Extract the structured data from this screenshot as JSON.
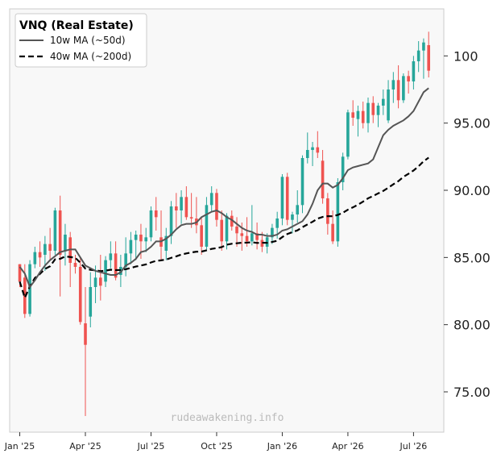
{
  "chart_data": {
    "type": "candlestick",
    "title": "VNQ (Real Estate)",
    "xlabel": "",
    "ylabel": "",
    "ylim": [
      72,
      103.5
    ],
    "y_ticks": [
      75,
      80,
      85,
      90,
      95,
      100
    ],
    "y_tick_labels": [
      "75.00",
      "80.00",
      "85.00",
      "90.00",
      "95.00",
      "100"
    ],
    "x_range": [
      -2,
      84
    ],
    "x_ticks": [
      0,
      13,
      26,
      39,
      52,
      65,
      78
    ],
    "x_tick_labels": [
      "Jan '25",
      "Apr '25",
      "Jul '25",
      "Oct '25",
      "Jan '26",
      "Apr '26",
      "Jul '26"
    ],
    "legend": {
      "position": "top-left",
      "entries": [
        {
          "label": "10w MA (~50d)",
          "color": "#555555",
          "style": "solid"
        },
        {
          "label": "40w MA (~200d)",
          "color": "#000000",
          "style": "dashed"
        }
      ]
    },
    "grid": false,
    "watermark": "rudeawakening.info",
    "colors": {
      "up": "#26a69a",
      "down": "#ef5350",
      "ma10": "#555555",
      "ma40": "#000000",
      "background": "#f8f8f8"
    },
    "ohlc": [
      [
        84.5,
        84.5,
        82.8,
        83.2
      ],
      [
        83.5,
        84.5,
        80.5,
        80.8
      ],
      [
        80.8,
        84.8,
        80.6,
        84.5
      ],
      [
        84.5,
        85.8,
        84.2,
        85.4
      ],
      [
        85.4,
        86.2,
        84.3,
        85.0
      ],
      [
        85.2,
        86.6,
        84.0,
        86.0
      ],
      [
        86.0,
        87.2,
        84.8,
        85.5
      ],
      [
        85.5,
        88.7,
        85.2,
        88.5
      ],
      [
        88.5,
        89.6,
        82.1,
        85.2
      ],
      [
        85.5,
        87.5,
        84.4,
        86.7
      ],
      [
        86.5,
        86.9,
        82.8,
        84.6
      ],
      [
        84.6,
        85.2,
        83.8,
        84.3
      ],
      [
        84.3,
        85.0,
        80.0,
        80.2
      ],
      [
        80.1,
        82.8,
        73.2,
        78.5
      ],
      [
        80.6,
        83.9,
        79.8,
        82.8
      ],
      [
        82.8,
        84.4,
        81.6,
        83.5
      ],
      [
        83.5,
        85.2,
        81.8,
        82.9
      ],
      [
        83.2,
        85.1,
        82.8,
        84.8
      ],
      [
        84.8,
        86.2,
        84.2,
        85.3
      ],
      [
        85.3,
        86.2,
        83.3,
        83.5
      ],
      [
        83.7,
        85.2,
        82.8,
        84.3
      ],
      [
        84.3,
        86.5,
        83.6,
        85.3
      ],
      [
        85.3,
        86.9,
        84.5,
        86.3
      ],
      [
        86.3,
        87.0,
        84.8,
        86.7
      ],
      [
        86.7,
        87.5,
        84.9,
        86.2
      ],
      [
        86.2,
        87.2,
        85.4,
        86.5
      ],
      [
        86.5,
        88.8,
        86.2,
        88.5
      ],
      [
        88.5,
        89.5,
        87.0,
        88.0
      ],
      [
        86.5,
        88.5,
        84.8,
        85.8
      ],
      [
        85.5,
        87.2,
        84.8,
        86.6
      ],
      [
        86.6,
        89.2,
        86.0,
        88.8
      ],
      [
        88.8,
        89.8,
        87.2,
        88.5
      ],
      [
        88.5,
        90.0,
        87.5,
        89.5
      ],
      [
        89.5,
        90.3,
        87.8,
        88.0
      ],
      [
        88.0,
        89.8,
        87.2,
        87.9
      ],
      [
        87.9,
        89.5,
        86.8,
        87.4
      ],
      [
        87.4,
        88.0,
        85.2,
        85.8
      ],
      [
        85.8,
        89.5,
        85.6,
        88.9
      ],
      [
        88.9,
        90.3,
        88.4,
        89.8
      ],
      [
        89.8,
        90.1,
        87.3,
        87.8
      ],
      [
        87.8,
        88.5,
        85.5,
        86.2
      ],
      [
        86.2,
        88.3,
        85.6,
        88.1
      ],
      [
        88.1,
        88.5,
        87.0,
        87.3
      ],
      [
        87.3,
        88.0,
        85.8,
        86.8
      ],
      [
        86.8,
        87.6,
        85.5,
        86.6
      ],
      [
        86.6,
        88.0,
        85.8,
        86.2
      ],
      [
        86.2,
        88.9,
        85.9,
        86.8
      ],
      [
        86.8,
        87.6,
        85.6,
        86.3
      ],
      [
        86.3,
        86.9,
        85.4,
        85.8
      ],
      [
        85.8,
        86.8,
        85.3,
        86.5
      ],
      [
        86.5,
        87.5,
        86.0,
        87.2
      ],
      [
        87.2,
        88.4,
        86.4,
        87.9
      ],
      [
        87.9,
        91.2,
        87.4,
        91.0
      ],
      [
        91.0,
        91.3,
        87.4,
        87.8
      ],
      [
        87.8,
        88.4,
        86.8,
        88.2
      ],
      [
        88.2,
        90.0,
        87.6,
        88.9
      ],
      [
        88.9,
        92.6,
        88.3,
        92.4
      ],
      [
        92.4,
        94.3,
        92.0,
        93.0
      ],
      [
        93.0,
        93.6,
        91.8,
        93.2
      ],
      [
        93.2,
        94.4,
        92.4,
        92.8
      ],
      [
        92.2,
        93.0,
        89.0,
        89.4
      ],
      [
        89.4,
        89.8,
        86.7,
        87.5
      ],
      [
        87.5,
        88.5,
        86.0,
        86.2
      ],
      [
        86.2,
        90.9,
        85.8,
        90.6
      ],
      [
        90.6,
        92.8,
        90.0,
        92.5
      ],
      [
        92.5,
        96.0,
        92.3,
        95.8
      ],
      [
        95.8,
        96.7,
        94.8,
        95.4
      ],
      [
        95.3,
        96.3,
        94.0,
        95.9
      ],
      [
        95.9,
        96.6,
        94.6,
        95.0
      ],
      [
        95.0,
        96.9,
        94.3,
        96.5
      ],
      [
        96.5,
        97.0,
        95.0,
        95.6
      ],
      [
        95.6,
        96.5,
        94.7,
        96.3
      ],
      [
        96.3,
        97.5,
        95.6,
        96.8
      ],
      [
        95.2,
        98.2,
        95.0,
        97.5
      ],
      [
        97.5,
        98.8,
        96.5,
        98.2
      ],
      [
        98.2,
        99.3,
        96.1,
        96.7
      ],
      [
        96.7,
        98.7,
        96.5,
        98.5
      ],
      [
        98.5,
        98.9,
        97.2,
        98.1
      ],
      [
        98.1,
        100.0,
        97.5,
        99.6
      ],
      [
        99.6,
        101.1,
        98.8,
        100.4
      ],
      [
        100.4,
        101.3,
        98.3,
        101.0
      ],
      [
        100.8,
        101.8,
        98.4,
        98.9
      ]
    ],
    "ma10": [
      84.3,
      83.8,
      82.8,
      83.3,
      83.9,
      84.4,
      84.8,
      85.1,
      85.4,
      85.5,
      85.6,
      85.6,
      85.0,
      84.4,
      84.2,
      84.0,
      83.9,
      83.8,
      83.7,
      83.7,
      83.9,
      84.4,
      84.6,
      84.9,
      85.4,
      85.5,
      85.8,
      86.2,
      86.2,
      86.4,
      86.7,
      87.1,
      87.4,
      87.5,
      87.5,
      87.6,
      88.0,
      88.2,
      88.4,
      88.5,
      88.3,
      88.0,
      87.8,
      87.5,
      87.2,
      87.0,
      86.9,
      86.7,
      86.7,
      86.6,
      86.6,
      86.7,
      87.0,
      87.1,
      87.3,
      87.5,
      87.7,
      88.2,
      89.0,
      90.0,
      90.5,
      90.5,
      90.2,
      90.4,
      90.9,
      91.5,
      91.7,
      91.8,
      91.9,
      92.0,
      92.3,
      93.2,
      94.1,
      94.5,
      94.8,
      95.0,
      95.2,
      95.5,
      95.9,
      96.6,
      97.3,
      97.6
    ]
  }
}
